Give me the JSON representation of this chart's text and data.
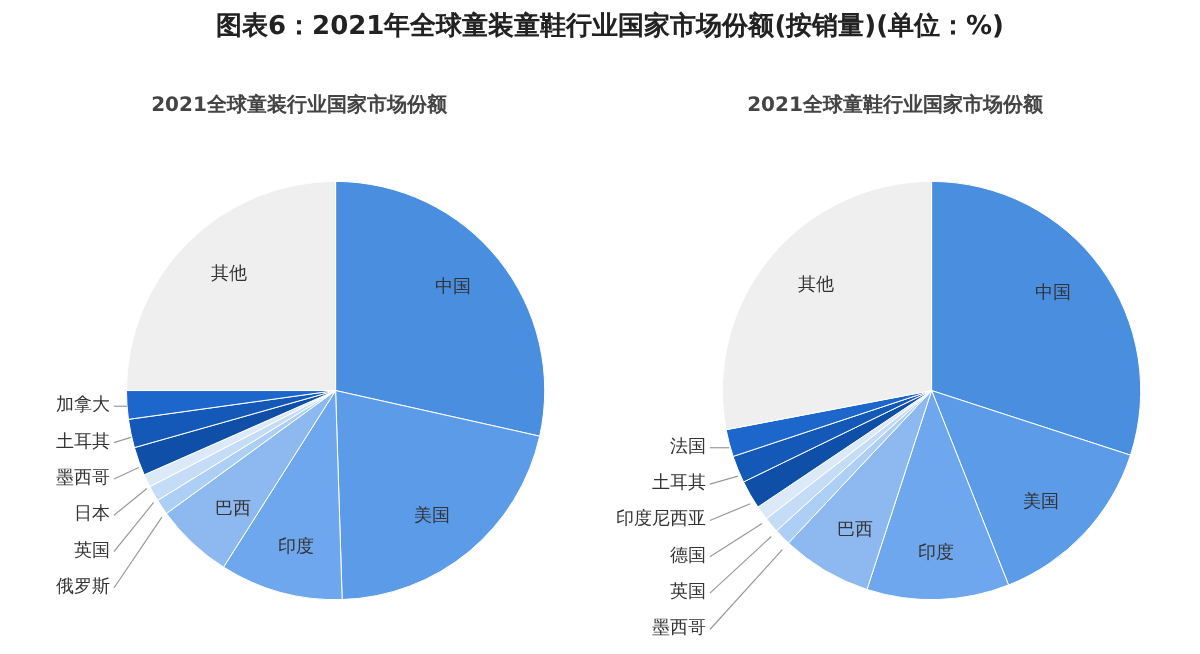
{
  "chart_data": [
    {
      "type": "pie",
      "title": "2021全球童装行业国家市场份额",
      "annotations": [
        "图表6：2021年全球童装童鞋行业国家市场份额(按销量)(单位：%)"
      ],
      "categories": [
        "中国",
        "美国",
        "印度",
        "巴西",
        "俄罗斯",
        "英国",
        "日本",
        "墨西哥",
        "土耳其",
        "加拿大",
        "其他"
      ],
      "values": [
        28.5,
        21,
        9.5,
        6,
        1.2,
        1.2,
        1,
        2.2,
        2.2,
        2.2,
        25
      ],
      "colors": [
        "#4a8ee0",
        "#5b9be8",
        "#6fa7ee",
        "#8db9f0",
        "#aecff5",
        "#c5dcf7",
        "#dbe9f9",
        "#0f4fa8",
        "#1559b8",
        "#1c66cc",
        "#efefef"
      ]
    },
    {
      "type": "pie",
      "title": "2021全球童鞋行业国家市场份额",
      "categories": [
        "中国",
        "美国",
        "印度",
        "巴西",
        "墨西哥",
        "英国",
        "德国",
        "印度尼西亚",
        "土耳其",
        "法国",
        "其他"
      ],
      "values": [
        30,
        14,
        11,
        7,
        1.3,
        1.2,
        1.1,
        2.2,
        2.1,
        2.1,
        28
      ],
      "colors": [
        "#4a8ee0",
        "#5b9be8",
        "#6fa7ee",
        "#8db9f0",
        "#aecff5",
        "#c5dcf7",
        "#dbe9f9",
        "#0f4fa8",
        "#1559b8",
        "#1c66cc",
        "#efefef"
      ]
    }
  ]
}
